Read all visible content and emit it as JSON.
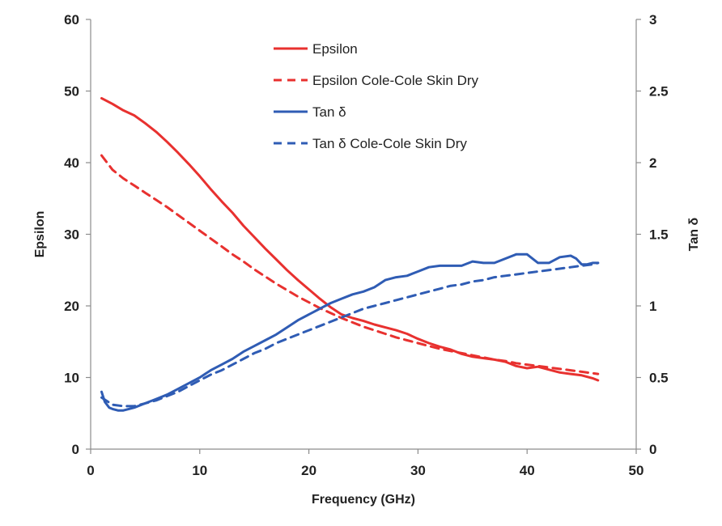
{
  "chart_data": {
    "type": "line",
    "xlabel": "Frequency (GHz)",
    "ylabel_left": "Epsilon",
    "ylabel_right": "Tan δ",
    "xlim": [
      0,
      50
    ],
    "ylim_left": [
      0,
      60
    ],
    "ylim_right": [
      0,
      3
    ],
    "x_ticks": [
      "0",
      "10",
      "20",
      "30",
      "40",
      "50"
    ],
    "y_ticks_left": [
      "0",
      "10",
      "20",
      "30",
      "40",
      "50",
      "60"
    ],
    "y_ticks_right": [
      "0",
      "0.5",
      "1",
      "1.5",
      "2",
      "2.5",
      "3"
    ],
    "grid": false,
    "legend_position": "top-center",
    "colors": {
      "red": "#e8312f",
      "blue": "#2f5cb4"
    },
    "series": [
      {
        "name": "Epsilon",
        "axis": "left",
        "color": "#e8312f",
        "dash": "solid",
        "x": [
          1,
          2,
          3,
          4,
          5,
          6,
          7,
          8,
          9,
          10,
          11,
          12,
          13,
          14,
          15,
          16,
          17,
          18,
          19,
          20,
          21,
          22,
          23,
          24,
          25,
          26,
          27,
          28,
          29,
          30,
          31,
          32,
          33,
          34,
          35,
          36,
          37,
          38,
          39,
          40,
          41,
          42,
          43,
          44,
          45,
          46,
          46.5
        ],
        "y": [
          49,
          48.2,
          47.3,
          46.6,
          45.5,
          44.3,
          42.9,
          41.4,
          39.8,
          38.1,
          36.3,
          34.6,
          33,
          31.2,
          29.6,
          28,
          26.5,
          25,
          23.6,
          22.3,
          21,
          19.8,
          18.8,
          18.3,
          17.9,
          17.4,
          17,
          16.6,
          16.1,
          15.4,
          14.8,
          14.3,
          13.9,
          13.3,
          12.9,
          12.7,
          12.5,
          12.2,
          11.6,
          11.3,
          11.5,
          11.1,
          10.7,
          10.5,
          10.3,
          9.9,
          9.6
        ]
      },
      {
        "name": "Epsilon Cole-Cole Skin Dry",
        "axis": "left",
        "color": "#e8312f",
        "dash": "dashed",
        "x": [
          1,
          2,
          3,
          4,
          5,
          6,
          7,
          8,
          9,
          10,
          11,
          12,
          13,
          14,
          15,
          16,
          17,
          18,
          19,
          20,
          21,
          22,
          23,
          24,
          25,
          26,
          27,
          28,
          29,
          30,
          31,
          32,
          33,
          34,
          35,
          36,
          37,
          38,
          39,
          40,
          41,
          42,
          43,
          44,
          45,
          46,
          46.5
        ],
        "y": [
          41,
          39,
          37.8,
          36.8,
          35.8,
          34.8,
          33.8,
          32.7,
          31.6,
          30.5,
          29.4,
          28.3,
          27.2,
          26.2,
          25.1,
          24.1,
          23.1,
          22.2,
          21.3,
          20.5,
          19.7,
          19,
          18.3,
          17.7,
          17.1,
          16.6,
          16.1,
          15.6,
          15.2,
          14.8,
          14.4,
          14,
          13.7,
          13.4,
          13.1,
          12.8,
          12.5,
          12.3,
          12,
          11.8,
          11.6,
          11.4,
          11.2,
          11,
          10.8,
          10.6,
          10.5
        ]
      },
      {
        "name": "Tan δ",
        "axis": "right",
        "color": "#2f5cb4",
        "dash": "solid",
        "x": [
          1,
          1.3,
          1.7,
          2,
          2.5,
          3,
          3.5,
          4,
          5,
          6,
          7,
          8,
          9,
          10,
          11,
          12,
          13,
          14,
          15,
          16,
          17,
          18,
          19,
          20,
          21,
          22,
          23,
          24,
          25,
          26,
          27,
          28,
          29,
          30,
          31,
          32,
          33,
          34,
          35,
          36,
          37,
          38,
          39,
          40,
          41,
          42,
          43,
          44,
          44.5,
          45,
          45.5,
          46,
          46.5
        ],
        "y": [
          0.4,
          0.33,
          0.29,
          0.28,
          0.27,
          0.27,
          0.28,
          0.29,
          0.32,
          0.35,
          0.38,
          0.42,
          0.46,
          0.5,
          0.55,
          0.59,
          0.63,
          0.68,
          0.72,
          0.76,
          0.8,
          0.85,
          0.9,
          0.94,
          0.98,
          1.02,
          1.05,
          1.08,
          1.1,
          1.13,
          1.18,
          1.2,
          1.21,
          1.24,
          1.27,
          1.28,
          1.28,
          1.28,
          1.31,
          1.3,
          1.3,
          1.33,
          1.36,
          1.36,
          1.3,
          1.3,
          1.34,
          1.35,
          1.33,
          1.29,
          1.29,
          1.3,
          1.3
        ]
      },
      {
        "name": "Tan δ Cole-Cole Skin Dry",
        "axis": "right",
        "color": "#2f5cb4",
        "dash": "dashed",
        "x": [
          1,
          2,
          3,
          4,
          5,
          6,
          7,
          8,
          9,
          10,
          11,
          12,
          13,
          14,
          15,
          16,
          17,
          18,
          19,
          20,
          21,
          22,
          23,
          24,
          25,
          26,
          27,
          28,
          29,
          30,
          31,
          32,
          33,
          34,
          35,
          36,
          37,
          38,
          39,
          40,
          41,
          42,
          43,
          44,
          45,
          46,
          46.5
        ],
        "y": [
          0.36,
          0.31,
          0.3,
          0.3,
          0.32,
          0.34,
          0.37,
          0.4,
          0.44,
          0.48,
          0.52,
          0.55,
          0.59,
          0.63,
          0.67,
          0.7,
          0.74,
          0.77,
          0.8,
          0.83,
          0.86,
          0.89,
          0.92,
          0.95,
          0.98,
          1,
          1.02,
          1.04,
          1.06,
          1.08,
          1.1,
          1.12,
          1.14,
          1.15,
          1.17,
          1.18,
          1.2,
          1.21,
          1.22,
          1.23,
          1.24,
          1.25,
          1.26,
          1.27,
          1.28,
          1.29,
          1.3
        ]
      }
    ]
  }
}
